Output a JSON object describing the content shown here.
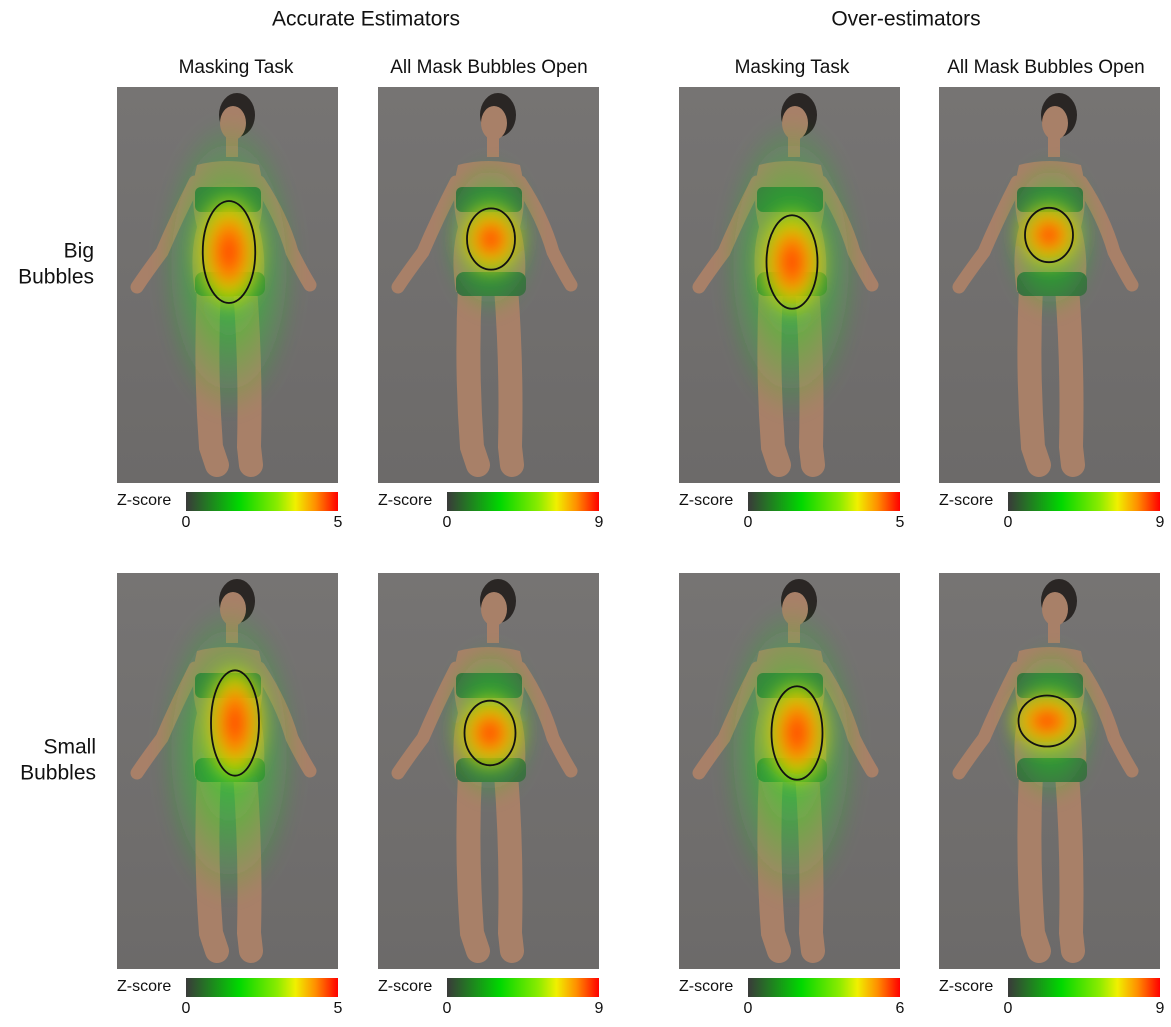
{
  "groups": [
    {
      "title": "Accurate Estimators",
      "columns": [
        "Masking Task",
        "All Mask Bubbles Open"
      ]
    },
    {
      "title": "Over-estimators",
      "columns": [
        "Masking Task",
        "All Mask Bubbles Open"
      ]
    }
  ],
  "rows": [
    {
      "label": [
        "Big",
        "Bubbles"
      ],
      "colorbars": [
        {
          "label": "Z-score",
          "min": 0,
          "max": 5
        },
        {
          "label": "Z-score",
          "min": 0,
          "max": 9
        },
        {
          "label": "Z-score",
          "min": 0,
          "max": 5
        },
        {
          "label": "Z-score",
          "min": 0,
          "max": 9
        }
      ]
    },
    {
      "label": [
        "Small",
        "Bubbles"
      ],
      "colorbars": [
        {
          "label": "Z-score",
          "min": 0,
          "max": 5
        },
        {
          "label": "Z-score",
          "min": 0,
          "max": 9
        },
        {
          "label": "Z-score",
          "min": 0,
          "max": 6
        },
        {
          "label": "Z-score",
          "min": 0,
          "max": 9
        }
      ]
    }
  ]
}
